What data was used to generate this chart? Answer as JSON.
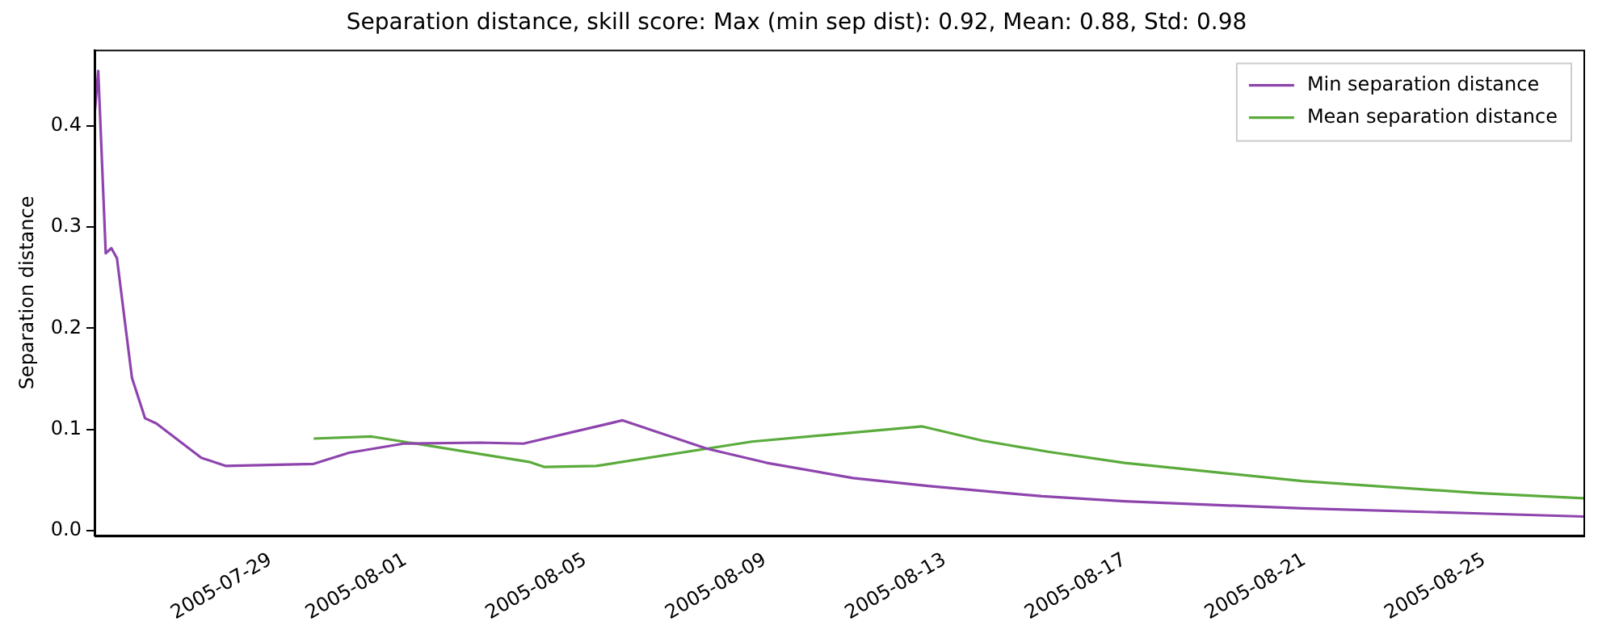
{
  "chart_data": {
    "type": "line",
    "title": "Separation distance, skill score: Max (min sep dist): 0.92, Mean: 0.88, Std: 0.98",
    "ylabel": "Separation distance",
    "xlim": [
      "2005-07-25T02:00",
      "2005-08-27T05:00"
    ],
    "xticks": [
      "2005-07-29",
      "2005-08-01",
      "2005-08-05",
      "2005-08-09",
      "2005-08-13",
      "2005-08-17",
      "2005-08-21",
      "2005-08-25"
    ],
    "ylim": [
      -0.005,
      0.475
    ],
    "yticks": [
      {
        "value": 0,
        "label": "0.0"
      },
      {
        "value": 0.1,
        "label": "0.1"
      },
      {
        "value": 0.2,
        "label": "0.2"
      },
      {
        "value": 0.3,
        "label": "0.3"
      },
      {
        "value": 0.4,
        "label": "0.4"
      }
    ],
    "grid": false,
    "legend": "top right",
    "marker": "none",
    "line_style": "solid",
    "series": [
      {
        "name": "Min separation distance",
        "color": "#8e44ad",
        "x": [
          "2005-07-25T02:00",
          "2005-07-25T04:00",
          "2005-07-25T08:00",
          "2005-07-25T11:00",
          "2005-07-25T14:00",
          "2005-07-25T19:00",
          "2005-07-25T22:00",
          "2005-07-26T05:00",
          "2005-07-26T11:00",
          "2005-07-27T11:00",
          "2005-07-28T00:00",
          "2005-07-29T23:00",
          "2005-07-30T18:00",
          "2005-07-31T23:00",
          "2005-08-02T16:00",
          "2005-08-03T15:00",
          "2005-08-05T20:00",
          "2005-08-07T17:00",
          "2005-08-09T01:00",
          "2005-08-10T23:00",
          "2005-08-12T16:00",
          "2005-08-15T04:00",
          "2005-08-17T00:00",
          "2005-08-20T23:00",
          "2005-08-24T22:00",
          "2005-08-27T05:00"
        ],
        "values": [
          0.41,
          0.454,
          0.274,
          0.279,
          0.269,
          0.195,
          0.151,
          0.111,
          0.106,
          0.072,
          0.064,
          0.066,
          0.077,
          0.086,
          0.087,
          0.086,
          0.109,
          0.081,
          0.067,
          0.052,
          0.044,
          0.034,
          0.029,
          0.022,
          0.017,
          0.014
        ]
      },
      {
        "name": "Mean separation distance",
        "color": "#5aab3c",
        "x": [
          "2005-07-29T23:00",
          "2005-07-31T06:00",
          "2005-08-03T18:00",
          "2005-08-04T02:00",
          "2005-08-05T06:00",
          "2005-08-08T17:00",
          "2005-08-12T12:00",
          "2005-08-13T20:00",
          "2005-08-15T07:00",
          "2005-08-17T00:00",
          "2005-08-20T23:00",
          "2005-08-24T22:00",
          "2005-08-27T05:00"
        ],
        "values": [
          0.091,
          0.093,
          0.068,
          0.063,
          0.064,
          0.088,
          0.103,
          0.089,
          0.078,
          0.067,
          0.049,
          0.037,
          0.032
        ]
      }
    ]
  }
}
